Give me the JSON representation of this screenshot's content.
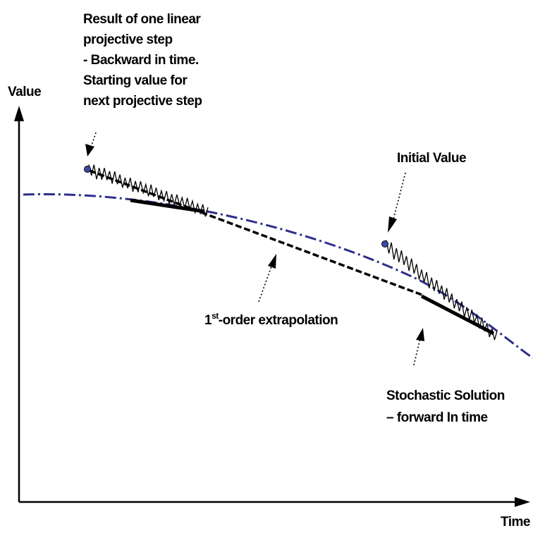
{
  "axes": {
    "y_label": "Value",
    "x_label": "Time"
  },
  "annotations": {
    "projective_step": {
      "line1": "Result of one linear",
      "line2": "projective step",
      "line3": "-  Backward in time.",
      "line4": "Starting value for",
      "line5": "next projective step"
    },
    "initial_value": "Initial Value",
    "extrapolation": {
      "prefix": "1",
      "superscript": "st",
      "rest": "-order extrapolation"
    },
    "stochastic": {
      "line1": "Stochastic Solution",
      "line2": "–   forward In time"
    }
  },
  "colors": {
    "reference_curve": "#2e2e8c",
    "extrapolation_line": "#000000",
    "noise": "#000000",
    "marker_fill": "#3b4aa8",
    "axes": "#000000"
  }
}
